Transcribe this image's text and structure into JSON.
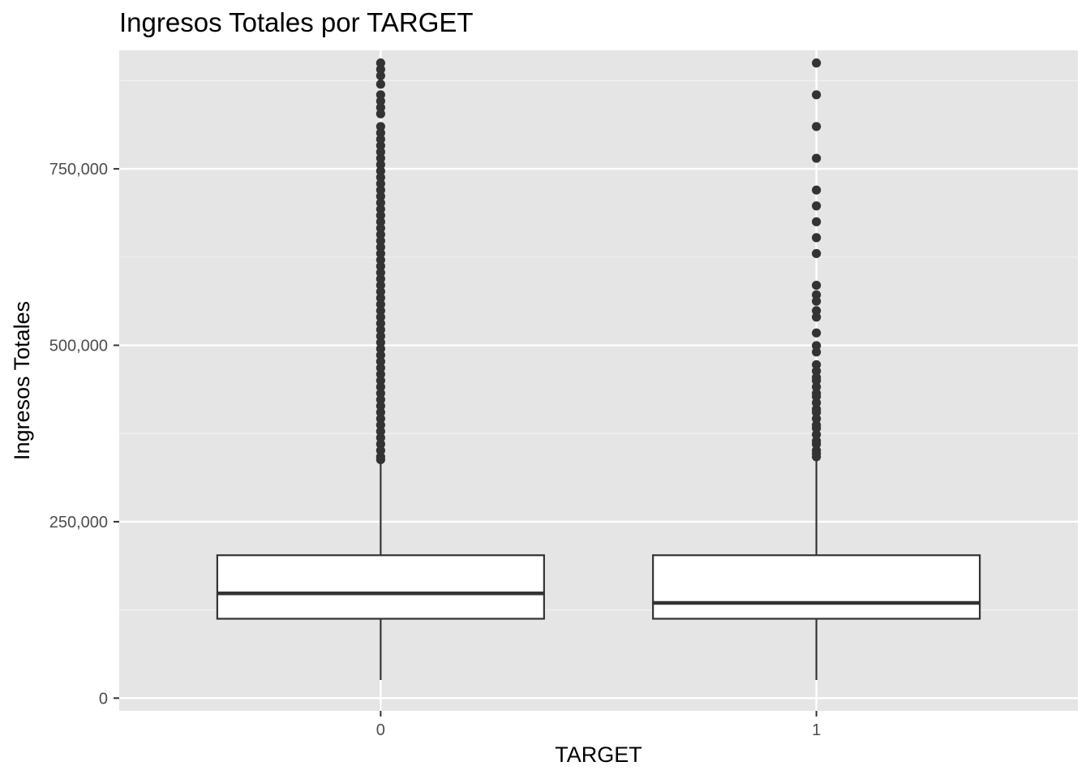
{
  "chart_data": {
    "type": "boxplot",
    "title": "Ingresos Totales por TARGET",
    "xlabel": "TARGET",
    "ylabel": "Ingresos Totales",
    "categories": [
      "0",
      "1"
    ],
    "ylim": [
      -18000,
      918000
    ],
    "y_ticks": [
      0,
      250000,
      500000,
      750000
    ],
    "y_tick_labels": [
      "0",
      "250,000",
      "500,000",
      "750,000"
    ],
    "grid": true,
    "boxes": [
      {
        "category": "0",
        "whisker_low": 25650,
        "q1": 112500,
        "median": 148500,
        "q3": 202500,
        "whisker_high": 337500,
        "outliers": [
          900000,
          891000,
          882000,
          870000,
          855000,
          846000,
          837000,
          828000,
          810000,
          801000,
          792000,
          783000,
          774000,
          765000,
          756000,
          747000,
          738000,
          729000,
          720000,
          711000,
          702000,
          693000,
          684000,
          675000,
          666000,
          657000,
          648000,
          639000,
          630000,
          621000,
          612000,
          603000,
          594000,
          585000,
          576000,
          567000,
          558000,
          549000,
          540000,
          531000,
          522000,
          513000,
          504000,
          495000,
          486000,
          477000,
          468000,
          459000,
          450000,
          441000,
          432000,
          423000,
          414000,
          405000,
          396000,
          387000,
          378000,
          369000,
          360000,
          351000,
          342000,
          338000
        ]
      },
      {
        "category": "1",
        "whisker_low": 25650,
        "q1": 112500,
        "median": 135000,
        "q3": 202500,
        "whisker_high": 342000,
        "outliers": [
          900000,
          855000,
          810000,
          765000,
          720000,
          697500,
          675000,
          652500,
          630000,
          585000,
          571500,
          562500,
          549000,
          540000,
          517500,
          499500,
          490500,
          472500,
          463500,
          454500,
          450000,
          441000,
          432000,
          427500,
          418500,
          409500,
          405000,
          396000,
          387000,
          382500,
          373500,
          364500,
          360000,
          351000,
          346500,
          342000
        ]
      }
    ]
  }
}
